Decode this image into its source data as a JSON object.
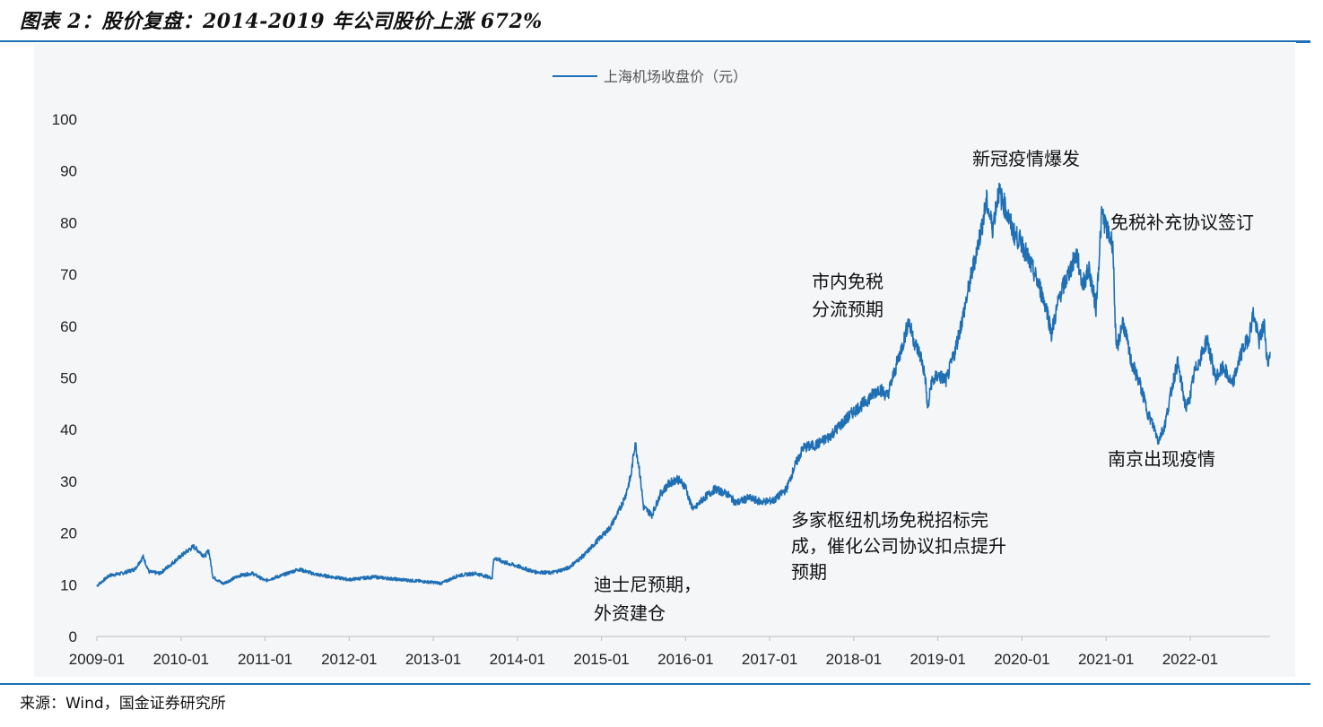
{
  "header": {
    "title": "图表 2：股价复盘：2014-2019 年公司股价上涨 672%"
  },
  "footer": {
    "source": "来源：Wind，国金证券研究所"
  },
  "colors": {
    "line": "#1f6fb4",
    "panel": "#f4f6f8",
    "rule": "#1f6fb4"
  },
  "chart_data": {
    "type": "line",
    "title": "图表 2：股价复盘：2014-2019 年公司股价上涨 672%",
    "xlabel": "",
    "ylabel": "",
    "ylim": [
      0,
      100
    ],
    "xlim": [
      2009.0,
      2022.95
    ],
    "legend": {
      "position": "top-center",
      "entries": [
        "上海机场收盘价（元）"
      ]
    },
    "grid": false,
    "y_ticks": [
      "0",
      "10",
      "20",
      "30",
      "40",
      "50",
      "60",
      "70",
      "80",
      "90",
      "100"
    ],
    "x_ticks": [
      "2009-01",
      "2010-01",
      "2011-01",
      "2012-01",
      "2013-01",
      "2014-01",
      "2015-01",
      "2016-01",
      "2017-01",
      "2018-01",
      "2019-01",
      "2020-01",
      "2021-01",
      "2022-01"
    ],
    "series": [
      {
        "name": "上海机场收盘价（元）",
        "points": [
          [
            2009.0,
            9.8
          ],
          [
            2009.15,
            11.8
          ],
          [
            2009.3,
            12.2
          ],
          [
            2009.45,
            13.0
          ],
          [
            2009.55,
            15.4
          ],
          [
            2009.62,
            12.5
          ],
          [
            2009.75,
            12.2
          ],
          [
            2009.9,
            14.2
          ],
          [
            2010.05,
            16.2
          ],
          [
            2010.15,
            17.4
          ],
          [
            2010.28,
            15.5
          ],
          [
            2010.33,
            16.6
          ],
          [
            2010.38,
            11.5
          ],
          [
            2010.5,
            10.2
          ],
          [
            2010.7,
            11.8
          ],
          [
            2010.85,
            12.2
          ],
          [
            2011.0,
            10.8
          ],
          [
            2011.2,
            11.8
          ],
          [
            2011.4,
            13.0
          ],
          [
            2011.6,
            12.0
          ],
          [
            2011.8,
            11.5
          ],
          [
            2012.0,
            11.0
          ],
          [
            2012.3,
            11.5
          ],
          [
            2012.6,
            11.0
          ],
          [
            2012.9,
            10.6
          ],
          [
            2013.1,
            10.3
          ],
          [
            2013.3,
            11.8
          ],
          [
            2013.5,
            12.2
          ],
          [
            2013.7,
            11.3
          ],
          [
            2013.72,
            15.2
          ],
          [
            2013.85,
            14.3
          ],
          [
            2014.0,
            13.6
          ],
          [
            2014.2,
            12.5
          ],
          [
            2014.4,
            12.3
          ],
          [
            2014.6,
            13.2
          ],
          [
            2014.8,
            15.8
          ],
          [
            2014.95,
            18.5
          ],
          [
            2015.1,
            21.0
          ],
          [
            2015.2,
            24.0
          ],
          [
            2015.28,
            27.0
          ],
          [
            2015.35,
            31.0
          ],
          [
            2015.4,
            37.5
          ],
          [
            2015.45,
            32.5
          ],
          [
            2015.5,
            25.0
          ],
          [
            2015.6,
            23.5
          ],
          [
            2015.7,
            27.5
          ],
          [
            2015.8,
            29.5
          ],
          [
            2015.9,
            30.5
          ],
          [
            2016.0,
            29.0
          ],
          [
            2016.05,
            26.0
          ],
          [
            2016.1,
            24.5
          ],
          [
            2016.2,
            26.5
          ],
          [
            2016.35,
            28.5
          ],
          [
            2016.5,
            27.5
          ],
          [
            2016.6,
            25.8
          ],
          [
            2016.75,
            26.8
          ],
          [
            2016.9,
            26.0
          ],
          [
            2017.05,
            26.3
          ],
          [
            2017.2,
            28.5
          ],
          [
            2017.3,
            33.0
          ],
          [
            2017.4,
            36.5
          ],
          [
            2017.55,
            37.0
          ],
          [
            2017.7,
            38.5
          ],
          [
            2017.85,
            41.0
          ],
          [
            2018.0,
            43.5
          ],
          [
            2018.15,
            45.5
          ],
          [
            2018.3,
            48.0
          ],
          [
            2018.4,
            46.5
          ],
          [
            2018.5,
            52.0
          ],
          [
            2018.6,
            57.5
          ],
          [
            2018.65,
            61.0
          ],
          [
            2018.72,
            57.0
          ],
          [
            2018.8,
            54.0
          ],
          [
            2018.85,
            50.0
          ],
          [
            2018.88,
            43.5
          ],
          [
            2018.92,
            49.0
          ],
          [
            2019.0,
            50.5
          ],
          [
            2019.1,
            49.5
          ],
          [
            2019.2,
            55.0
          ],
          [
            2019.3,
            62.0
          ],
          [
            2019.4,
            70.0
          ],
          [
            2019.5,
            77.5
          ],
          [
            2019.58,
            84.0
          ],
          [
            2019.65,
            79.0
          ],
          [
            2019.72,
            86.0
          ],
          [
            2019.8,
            83.0
          ],
          [
            2019.9,
            78.0
          ],
          [
            2020.0,
            76.0
          ],
          [
            2020.1,
            72.0
          ],
          [
            2020.2,
            68.0
          ],
          [
            2020.3,
            63.0
          ],
          [
            2020.35,
            58.5
          ],
          [
            2020.45,
            66.0
          ],
          [
            2020.55,
            70.0
          ],
          [
            2020.65,
            74.0
          ],
          [
            2020.72,
            68.0
          ],
          [
            2020.8,
            71.0
          ],
          [
            2020.88,
            63.5
          ],
          [
            2020.95,
            82.0
          ],
          [
            2021.02,
            78.0
          ],
          [
            2021.08,
            76.0
          ],
          [
            2021.12,
            55.0
          ],
          [
            2021.2,
            61.0
          ],
          [
            2021.3,
            53.0
          ],
          [
            2021.4,
            49.0
          ],
          [
            2021.5,
            43.0
          ],
          [
            2021.58,
            40.0
          ],
          [
            2021.62,
            37.8
          ],
          [
            2021.7,
            41.0
          ],
          [
            2021.8,
            49.5
          ],
          [
            2021.85,
            53.0
          ],
          [
            2021.95,
            44.0
          ],
          [
            2022.0,
            46.5
          ],
          [
            2022.05,
            51.0
          ],
          [
            2022.15,
            55.0
          ],
          [
            2022.2,
            57.5
          ],
          [
            2022.3,
            50.0
          ],
          [
            2022.4,
            52.0
          ],
          [
            2022.5,
            48.5
          ],
          [
            2022.6,
            54.5
          ],
          [
            2022.7,
            58.0
          ],
          [
            2022.75,
            62.5
          ],
          [
            2022.82,
            57.0
          ],
          [
            2022.88,
            60.5
          ],
          [
            2022.92,
            52.5
          ],
          [
            2022.95,
            55.0
          ]
        ]
      }
    ],
    "annotations": [
      {
        "id": "disney",
        "lines": [
          "迪士尼预期，",
          "外资建仓"
        ]
      },
      {
        "id": "hub-tender",
        "lines": [
          "多家枢纽机场免税招标完",
          "成，催化公司协议扣点提升",
          "预期"
        ]
      },
      {
        "id": "city-dutyfree",
        "lines": [
          "市内免税",
          "分流预期"
        ]
      },
      {
        "id": "covid",
        "lines": [
          "新冠疫情爆发"
        ]
      },
      {
        "id": "supplement",
        "lines": [
          "免税补充协议签订"
        ]
      },
      {
        "id": "nanjing",
        "lines": [
          "南京出现疫情"
        ]
      }
    ]
  }
}
